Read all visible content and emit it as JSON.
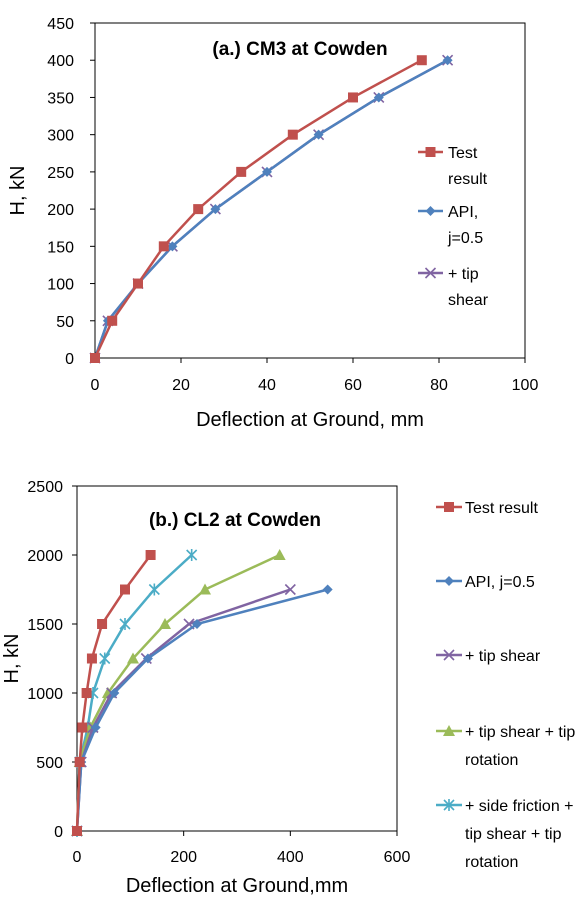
{
  "chart_data": [
    {
      "type": "line",
      "title": "(a.) CM3 at Cowden",
      "xlabel": "Deflection at Ground, mm",
      "ylabel": "H, kN",
      "xlim": [
        0,
        100
      ],
      "ylim": [
        0,
        450
      ],
      "x_ticks": [
        "0",
        "20",
        "40",
        "60",
        "80",
        "100"
      ],
      "y_ticks": [
        "0",
        "50",
        "100",
        "150",
        "200",
        "250",
        "300",
        "350",
        "400",
        "450"
      ],
      "grid": false,
      "legend_placement": "right",
      "series": [
        {
          "name": "Test result",
          "color": "#c0504d",
          "marker": "square",
          "legend_lines": [
            "Test",
            "result"
          ],
          "points": [
            [
              0,
              0
            ],
            [
              4,
              50
            ],
            [
              10,
              100
            ],
            [
              16,
              150
            ],
            [
              24,
              200
            ],
            [
              34,
              250
            ],
            [
              46,
              300
            ],
            [
              60,
              350
            ],
            [
              76,
              400
            ]
          ]
        },
        {
          "name": "API, j=0.5",
          "color": "#4f81bd",
          "marker": "diamond",
          "legend_lines": [
            "API,",
            "j=0.5"
          ],
          "points": [
            [
              0,
              0
            ],
            [
              3,
              50
            ],
            [
              10,
              100
            ],
            [
              18,
              150
            ],
            [
              28,
              200
            ],
            [
              40,
              250
            ],
            [
              52,
              300
            ],
            [
              66,
              350
            ],
            [
              82,
              400
            ]
          ]
        },
        {
          "name": "+ tip shear",
          "color": "#8064a2",
          "marker": "x",
          "legend_lines": [
            "+ tip",
            "shear"
          ],
          "points": [
            [
              0,
              0
            ],
            [
              3,
              50
            ],
            [
              10,
              100
            ],
            [
              18,
              150
            ],
            [
              28,
              200
            ],
            [
              40,
              250
            ],
            [
              52,
              300
            ],
            [
              66,
              350
            ],
            [
              82,
              400
            ]
          ]
        }
      ]
    },
    {
      "type": "line",
      "title": "(b.) CL2 at Cowden",
      "xlabel": "Deflection at Ground,mm",
      "ylabel": "H, kN",
      "xlim": [
        0,
        600
      ],
      "ylim": [
        0,
        2500
      ],
      "x_ticks": [
        "0",
        "200",
        "400",
        "600"
      ],
      "y_ticks": [
        "0",
        "500",
        "1000",
        "1500",
        "2000",
        "2500"
      ],
      "grid": false,
      "legend_placement": "right",
      "series": [
        {
          "name": "Test result",
          "color": "#c0504d",
          "marker": "square",
          "legend_lines": [
            "Test result"
          ],
          "points": [
            [
              0,
              0
            ],
            [
              5,
              500
            ],
            [
              10,
              750
            ],
            [
              18,
              1000
            ],
            [
              28,
              1250
            ],
            [
              47,
              1500
            ],
            [
              90,
              1750
            ],
            [
              138,
              2000
            ]
          ]
        },
        {
          "name": "API, j=0.5",
          "color": "#4f81bd",
          "marker": "diamond",
          "legend_lines": [
            "API, j=0.5"
          ],
          "points": [
            [
              0,
              0
            ],
            [
              8,
              500
            ],
            [
              35,
              750
            ],
            [
              70,
              1000
            ],
            [
              133,
              1250
            ],
            [
              225,
              1500
            ],
            [
              470,
              1750
            ]
          ]
        },
        {
          "name": "+ tip shear",
          "color": "#8064a2",
          "marker": "x",
          "legend_lines": [
            "+ tip shear"
          ],
          "points": [
            [
              0,
              0
            ],
            [
              8,
              500
            ],
            [
              30,
              750
            ],
            [
              65,
              1000
            ],
            [
              130,
              1250
            ],
            [
              210,
              1500
            ],
            [
              400,
              1750
            ]
          ]
        },
        {
          "name": "+ tip shear + tip rotation",
          "color": "#9bbb59",
          "marker": "triangle",
          "legend_lines": [
            "+ tip shear + tip",
            "rotation"
          ],
          "points": [
            [
              0,
              0
            ],
            [
              5,
              500
            ],
            [
              25,
              750
            ],
            [
              58,
              1000
            ],
            [
              105,
              1250
            ],
            [
              165,
              1500
            ],
            [
              240,
              1750
            ],
            [
              380,
              2000
            ]
          ]
        },
        {
          "name": "+ side friction + tip shear + tip rotation",
          "color": "#4bacc6",
          "marker": "star",
          "legend_lines": [
            "+ side friction +",
            "tip shear + tip",
            "rotation"
          ],
          "points": [
            [
              0,
              0
            ],
            [
              5,
              500
            ],
            [
              20,
              750
            ],
            [
              30,
              1000
            ],
            [
              52,
              1250
            ],
            [
              90,
              1500
            ],
            [
              145,
              1750
            ],
            [
              215,
              2000
            ]
          ]
        }
      ]
    }
  ]
}
